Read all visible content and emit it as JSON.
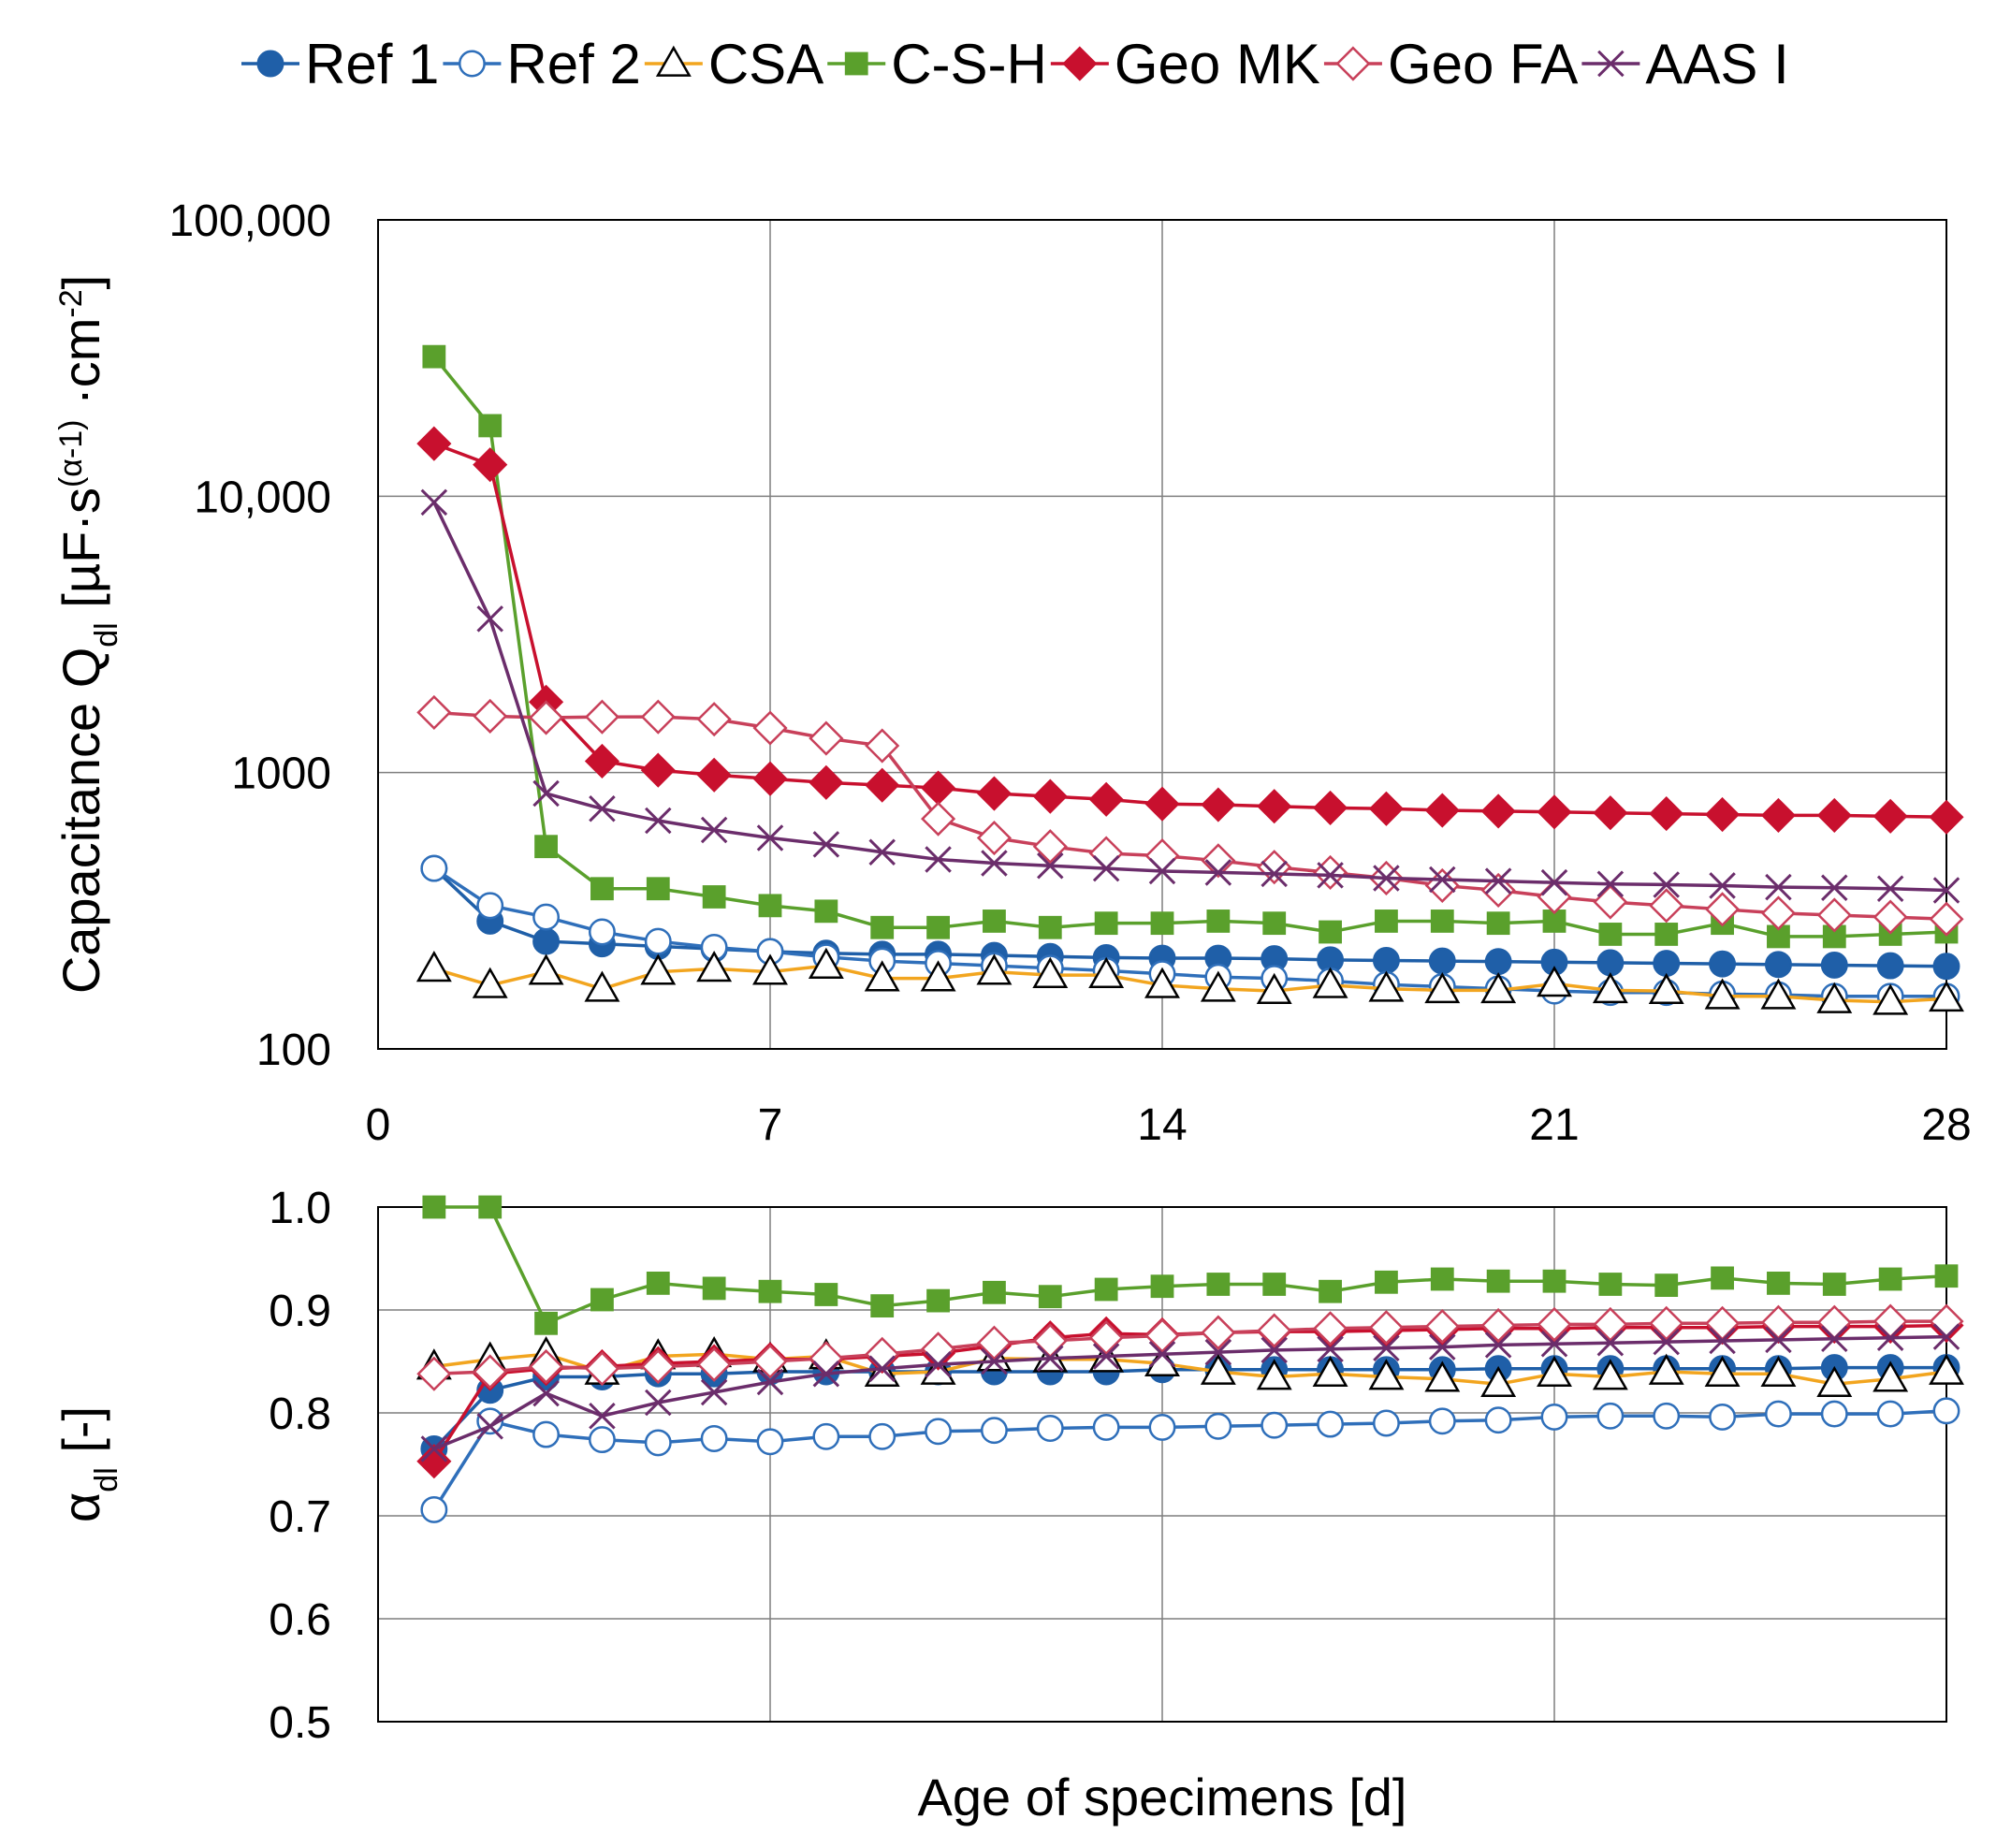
{
  "chart_data": [
    {
      "type": "line",
      "name": "capacitance",
      "yscale": "log",
      "ylabel_parts": [
        "Capacitance Q",
        "dl",
        " [µF·s",
        "(α-1)",
        " ·cm",
        "-2",
        "]"
      ],
      "ylim": [
        100,
        100000
      ],
      "yticks": [
        100,
        1000,
        10000,
        100000
      ],
      "ytick_labels": [
        "100",
        "1000",
        "10,000",
        "100,000"
      ],
      "xlim": [
        0,
        28
      ],
      "xticks": [
        0,
        7,
        14,
        21,
        28
      ],
      "xtick_labels": [
        "0",
        "7",
        "14",
        "21",
        "28"
      ],
      "x": [
        1,
        2,
        3,
        4,
        5,
        6,
        7,
        8,
        9,
        10,
        11,
        12,
        13,
        14,
        15,
        16,
        17,
        18,
        19,
        20,
        21,
        22,
        23,
        24,
        25,
        26,
        27,
        28
      ],
      "series": [
        {
          "name": "Ref 1",
          "values": [
            450,
            290,
            245,
            240,
            235,
            230,
            225,
            222,
            220,
            220,
            218,
            216,
            214,
            213,
            213,
            212,
            210,
            209,
            208,
            207,
            206,
            205,
            204,
            203,
            202,
            201,
            200,
            199
          ]
        },
        {
          "name": "Ref 2",
          "values": [
            450,
            330,
            300,
            265,
            245,
            233,
            225,
            215,
            208,
            204,
            200,
            196,
            192,
            187,
            182,
            180,
            176,
            171,
            168,
            165,
            162,
            160,
            160,
            158,
            157,
            155,
            155,
            155
          ]
        },
        {
          "name": "CSA",
          "values": [
            195,
            170,
            190,
            165,
            190,
            195,
            190,
            200,
            180,
            180,
            190,
            185,
            185,
            170,
            165,
            162,
            170,
            165,
            163,
            163,
            172,
            163,
            162,
            155,
            155,
            150,
            148,
            152
          ]
        },
        {
          "name": "C-S-H",
          "values": [
            32000,
            18000,
            540,
            380,
            380,
            355,
            330,
            315,
            275,
            275,
            290,
            275,
            285,
            285,
            290,
            285,
            265,
            290,
            290,
            285,
            290,
            260,
            260,
            285,
            255,
            255,
            260,
            265
          ]
        },
        {
          "name": "Geo MK",
          "values": [
            15500,
            13000,
            1800,
            1100,
            1020,
            980,
            950,
            920,
            900,
            880,
            840,
            820,
            800,
            770,
            765,
            755,
            745,
            740,
            730,
            725,
            720,
            715,
            710,
            705,
            700,
            700,
            695,
            690
          ]
        },
        {
          "name": "Geo FA",
          "values": [
            1650,
            1600,
            1580,
            1590,
            1590,
            1560,
            1450,
            1330,
            1250,
            680,
            580,
            540,
            510,
            500,
            480,
            455,
            435,
            415,
            390,
            375,
            355,
            340,
            330,
            320,
            310,
            305,
            300,
            295
          ]
        },
        {
          "name": "AAS I",
          "values": [
            9500,
            3600,
            840,
            740,
            670,
            620,
            580,
            550,
            515,
            485,
            470,
            460,
            450,
            440,
            435,
            430,
            425,
            415,
            410,
            405,
            400,
            395,
            393,
            390,
            385,
            383,
            380,
            375
          ]
        }
      ]
    },
    {
      "type": "line",
      "name": "alpha",
      "ylabel_parts": [
        "α",
        "dl",
        " [-]"
      ],
      "ylim": [
        0.5,
        1.0
      ],
      "yticks": [
        0.5,
        0.6,
        0.7,
        0.8,
        0.9,
        1.0
      ],
      "ytick_labels": [
        "0.5",
        "0.6",
        "0.7",
        "0.8",
        "0.9",
        "1.0"
      ],
      "xlim": [
        0,
        28
      ],
      "xticks": [
        0,
        7,
        14,
        21,
        28
      ],
      "xlabel": "Age of specimens [d]",
      "x": [
        1,
        2,
        3,
        4,
        5,
        6,
        7,
        8,
        9,
        10,
        11,
        12,
        13,
        14,
        15,
        16,
        17,
        18,
        19,
        20,
        21,
        22,
        23,
        24,
        25,
        26,
        27,
        28
      ],
      "series": [
        {
          "name": "Ref 1",
          "values": [
            0.765,
            0.822,
            0.835,
            0.835,
            0.838,
            0.838,
            0.84,
            0.84,
            0.84,
            0.84,
            0.84,
            0.84,
            0.84,
            0.842,
            0.842,
            0.842,
            0.842,
            0.842,
            0.842,
            0.843,
            0.843,
            0.843,
            0.843,
            0.843,
            0.843,
            0.844,
            0.844,
            0.844
          ]
        },
        {
          "name": "Ref 2",
          "values": [
            0.706,
            0.792,
            0.779,
            0.774,
            0.771,
            0.775,
            0.772,
            0.777,
            0.777,
            0.782,
            0.783,
            0.785,
            0.786,
            0.786,
            0.787,
            0.788,
            0.789,
            0.79,
            0.792,
            0.793,
            0.796,
            0.797,
            0.797,
            0.796,
            0.799,
            0.799,
            0.799,
            0.802
          ]
        },
        {
          "name": "CSA",
          "values": [
            0.845,
            0.852,
            0.857,
            0.84,
            0.855,
            0.857,
            0.852,
            0.855,
            0.838,
            0.84,
            0.853,
            0.852,
            0.852,
            0.848,
            0.84,
            0.835,
            0.838,
            0.835,
            0.833,
            0.828,
            0.838,
            0.835,
            0.84,
            0.838,
            0.838,
            0.828,
            0.833,
            0.84
          ]
        },
        {
          "name": "C-S-H",
          "values": [
            1.0,
            1.0,
            0.887,
            0.91,
            0.926,
            0.921,
            0.918,
            0.915,
            0.904,
            0.909,
            0.917,
            0.913,
            0.92,
            0.923,
            0.925,
            0.925,
            0.918,
            0.927,
            0.93,
            0.928,
            0.928,
            0.925,
            0.924,
            0.931,
            0.926,
            0.925,
            0.93,
            0.933
          ]
        },
        {
          "name": "Geo MK",
          "values": [
            0.753,
            0.838,
            0.843,
            0.845,
            0.848,
            0.85,
            0.852,
            0.852,
            0.855,
            0.858,
            0.865,
            0.873,
            0.877,
            0.876,
            0.878,
            0.879,
            0.879,
            0.88,
            0.881,
            0.882,
            0.882,
            0.883,
            0.883,
            0.883,
            0.884,
            0.884,
            0.884,
            0.885
          ]
        },
        {
          "name": "Geo FA",
          "values": [
            0.838,
            0.84,
            0.845,
            0.843,
            0.845,
            0.847,
            0.85,
            0.853,
            0.857,
            0.862,
            0.868,
            0.87,
            0.873,
            0.875,
            0.878,
            0.88,
            0.882,
            0.883,
            0.884,
            0.885,
            0.886,
            0.886,
            0.887,
            0.887,
            0.888,
            0.888,
            0.889,
            0.889
          ]
        },
        {
          "name": "AAS I",
          "values": [
            0.765,
            0.787,
            0.819,
            0.797,
            0.81,
            0.82,
            0.83,
            0.838,
            0.843,
            0.847,
            0.85,
            0.853,
            0.855,
            0.857,
            0.859,
            0.861,
            0.862,
            0.863,
            0.864,
            0.866,
            0.867,
            0.868,
            0.869,
            0.87,
            0.871,
            0.872,
            0.873,
            0.874
          ]
        }
      ]
    }
  ],
  "legend": {
    "position": "top",
    "entries": [
      {
        "name": "Ref 1",
        "color": "#1f5fa8",
        "marker": "circle",
        "filled": true
      },
      {
        "name": "Ref 2",
        "color": "#2f6fba",
        "marker": "circle",
        "filled": false
      },
      {
        "name": "CSA",
        "color": "#f2a51f",
        "marker": "triangle",
        "filled": false
      },
      {
        "name": "C-S-H",
        "color": "#5aa02c",
        "marker": "square",
        "filled": true
      },
      {
        "name": "Geo MK",
        "color": "#c8102e",
        "marker": "diamond",
        "filled": true
      },
      {
        "name": "Geo FA",
        "color": "#c8405a",
        "marker": "diamond",
        "filled": false
      },
      {
        "name": "AAS I",
        "color": "#6b2d6b",
        "marker": "cross",
        "filled": false
      }
    ]
  }
}
